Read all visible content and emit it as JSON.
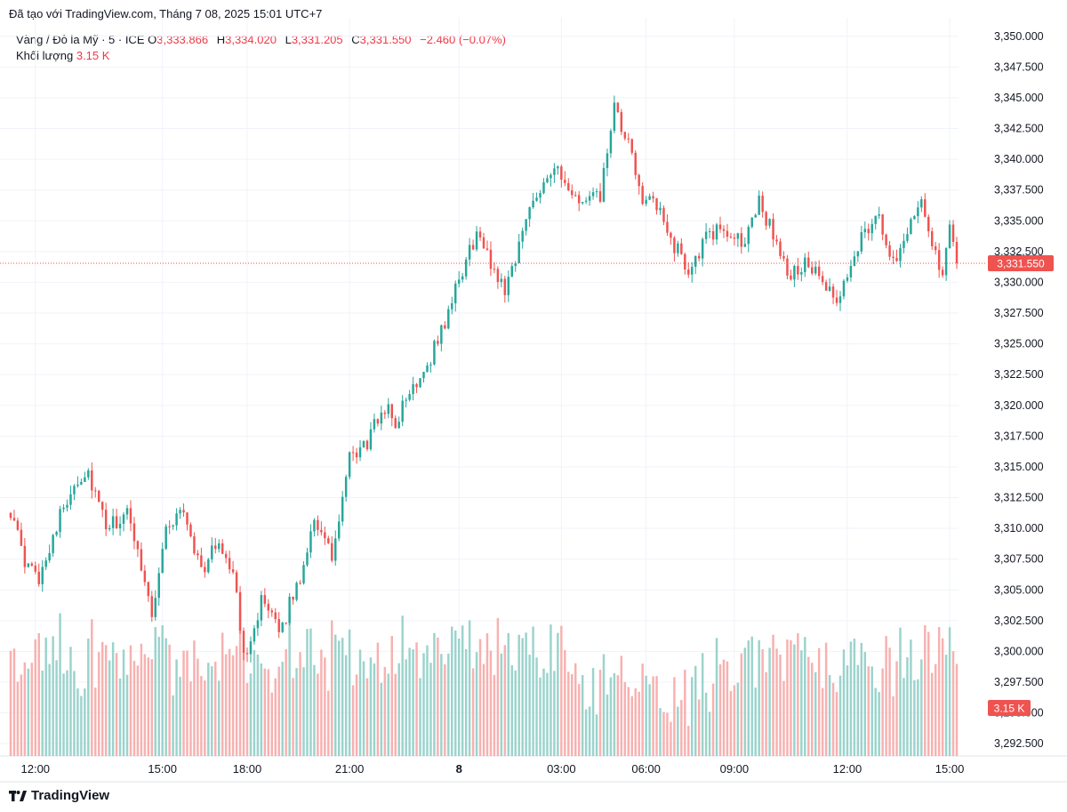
{
  "header": {
    "caption": "Đã tạo với TradingView.com, Tháng 7 08, 2025 15:01 UTC+7"
  },
  "legend": {
    "symbol": "Vàng / Đô la Mỹ · 5 · ICE",
    "open_label": "O",
    "open": "3,333.866",
    "high_label": "H",
    "high": "3,334.020",
    "low_label": "L",
    "low": "3,331.205",
    "close_label": "C",
    "close": "3,331.550",
    "change": "−2.460 (−0.07%)",
    "volume_label": "Khối lượng",
    "volume": "3.15 K"
  },
  "price_badge": "3,331.550",
  "volume_badge": "3.15 K",
  "brand": "TradingView",
  "colors": {
    "up": "#26a69a",
    "down": "#ef5350",
    "up_volume": "#9bd3cc",
    "down_volume": "#f7b1b0",
    "badge": "#ef5350",
    "grid": "#f0f3fa"
  },
  "chart_data": {
    "type": "candlestick",
    "y_axis": {
      "min": 3291.5,
      "max": 3351.5,
      "ticks": [
        "3,350.000",
        "3,347.500",
        "3,345.000",
        "3,342.500",
        "3,340.000",
        "3,337.500",
        "3,335.000",
        "3,332.500",
        "3,330.000",
        "3,327.500",
        "3,325.000",
        "3,322.500",
        "3,320.000",
        "3,317.500",
        "3,315.000",
        "3,312.500",
        "3,310.000",
        "3,307.500",
        "3,305.000",
        "3,302.500",
        "3,300.000",
        "3,297.500",
        "3,295.000",
        "3,292.500"
      ],
      "tick_values": [
        3350,
        3347.5,
        3345,
        3342.5,
        3340,
        3337.5,
        3335,
        3332.5,
        3330,
        3327.5,
        3325,
        3322.5,
        3320,
        3317.5,
        3315,
        3312.5,
        3310,
        3307.5,
        3305,
        3302.5,
        3300,
        3297.5,
        3295,
        3292.5
      ]
    },
    "x_axis": {
      "labels": [
        "12:00",
        "15:00",
        "18:00",
        "21:00",
        "8",
        "03:00",
        "06:00",
        "09:00",
        "12:00",
        "15:00"
      ],
      "bold": [
        false,
        false,
        false,
        false,
        true,
        false,
        false,
        false,
        false,
        false
      ],
      "bar_index": [
        7,
        43,
        67,
        96,
        127,
        156,
        180,
        205,
        237,
        266
      ]
    },
    "bar_count": 269,
    "anchors": [
      [
        0,
        3311.5
      ],
      [
        4,
        3307
      ],
      [
        8,
        3306
      ],
      [
        12,
        3309.5
      ],
      [
        18,
        3313.8
      ],
      [
        22,
        3314.5
      ],
      [
        27,
        3310
      ],
      [
        33,
        3311
      ],
      [
        36,
        3308.5
      ],
      [
        40,
        3303
      ],
      [
        44,
        3310
      ],
      [
        49,
        3311.5
      ],
      [
        54,
        3306.5
      ],
      [
        59,
        3309
      ],
      [
        63,
        3306.5
      ],
      [
        66,
        3299.5
      ],
      [
        71,
        3304
      ],
      [
        76,
        3301.5
      ],
      [
        82,
        3306
      ],
      [
        86,
        3311
      ],
      [
        91,
        3307.5
      ],
      [
        96,
        3315.5
      ],
      [
        101,
        3317
      ],
      [
        106,
        3320
      ],
      [
        109,
        3318.5
      ],
      [
        113,
        3321
      ],
      [
        119,
        3324
      ],
      [
        124,
        3327.5
      ],
      [
        128,
        3331
      ],
      [
        132,
        3334
      ],
      [
        136,
        3331.5
      ],
      [
        140,
        3329.5
      ],
      [
        144,
        3333
      ],
      [
        148,
        3337
      ],
      [
        154,
        3339.5
      ],
      [
        158,
        3337
      ],
      [
        163,
        3336.5
      ],
      [
        167,
        3337
      ],
      [
        171,
        3344
      ],
      [
        175,
        3341
      ],
      [
        179,
        3337
      ],
      [
        183,
        3336
      ],
      [
        188,
        3333
      ],
      [
        192,
        3331
      ],
      [
        197,
        3333.5
      ],
      [
        202,
        3334.5
      ],
      [
        207,
        3333
      ],
      [
        212,
        3336.5
      ],
      [
        216,
        3334
      ],
      [
        220,
        3330.5
      ],
      [
        225,
        3331.5
      ],
      [
        230,
        3330
      ],
      [
        234,
        3328
      ],
      [
        238,
        3331.5
      ],
      [
        242,
        3334.5
      ],
      [
        246,
        3335
      ],
      [
        250,
        3331.5
      ],
      [
        254,
        3334.5
      ],
      [
        258,
        3337
      ],
      [
        262,
        3332
      ],
      [
        264,
        3330.6
      ],
      [
        266,
        3334
      ],
      [
        268,
        3331.55
      ]
    ],
    "volume_scale_max": 10
  }
}
